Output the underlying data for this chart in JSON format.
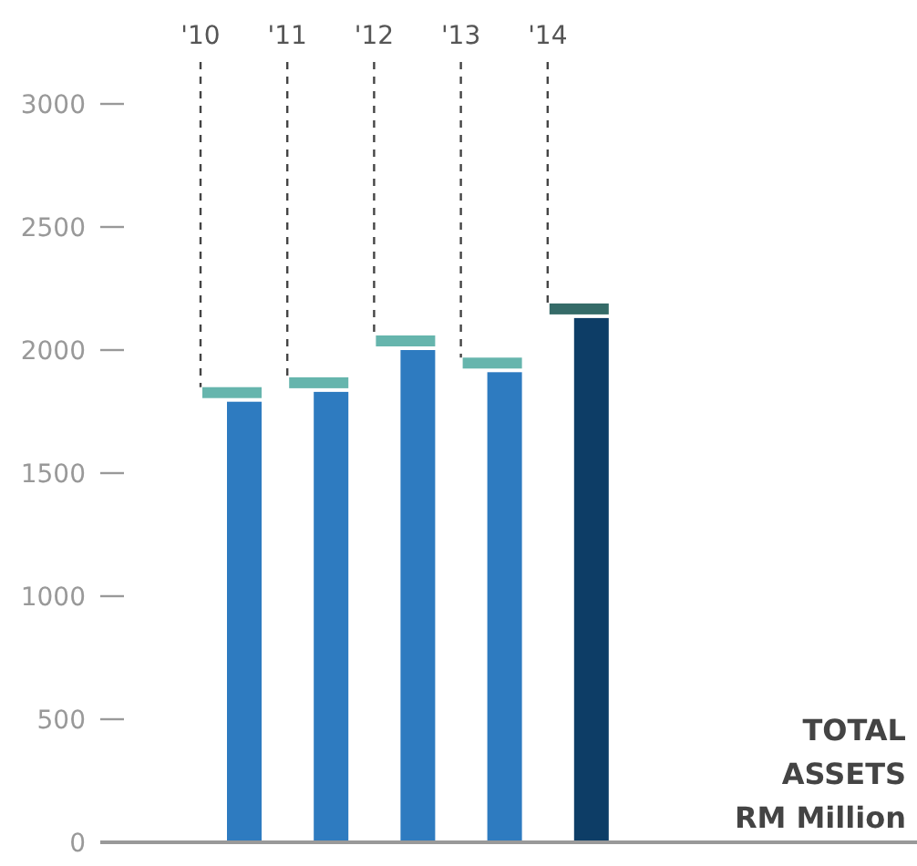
{
  "chart_data": {
    "type": "bar",
    "title": "TOTAL ASSETS",
    "subtitle": "RM Million",
    "categories": [
      "'10",
      "'11",
      "'12",
      "'13",
      "'14"
    ],
    "values": [
      1790,
      1830,
      2000,
      1910,
      2130
    ],
    "colors": [
      "#2e7bc0",
      "#2e7bc0",
      "#2e7bc0",
      "#2e7bc0",
      "#0d3d66"
    ],
    "ylim": [
      0,
      3000
    ],
    "yticks": [
      0,
      500,
      1000,
      1500,
      2000,
      2500,
      3000
    ],
    "grid": false
  }
}
